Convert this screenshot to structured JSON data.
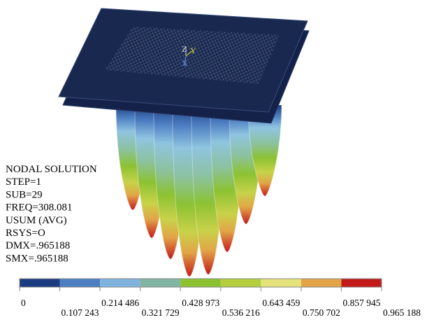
{
  "info": [
    "NODAL SOLUTION",
    "STEP=1",
    "SUB=29",
    "FREQ=308.081",
    "USUM (AVG)",
    "RSYS=O",
    "DMX=.965188",
    "SMX=.965188"
  ],
  "triad": [
    "Z",
    "Y",
    "X"
  ],
  "legend": {
    "colors": [
      "#1b3c80",
      "#4d7ec2",
      "#7fb2dc",
      "#7fb5a2",
      "#8cc232",
      "#b4cf3e",
      "#e4e27a",
      "#e2a447",
      "#c31a1a"
    ],
    "labels": [
      "0",
      "0.107 243",
      "0.214 486",
      "0.321 729",
      "0.428 973",
      "0.536 216",
      "0.643 459",
      "0.750 702",
      "0.857 945",
      "0.965 188"
    ]
  }
}
